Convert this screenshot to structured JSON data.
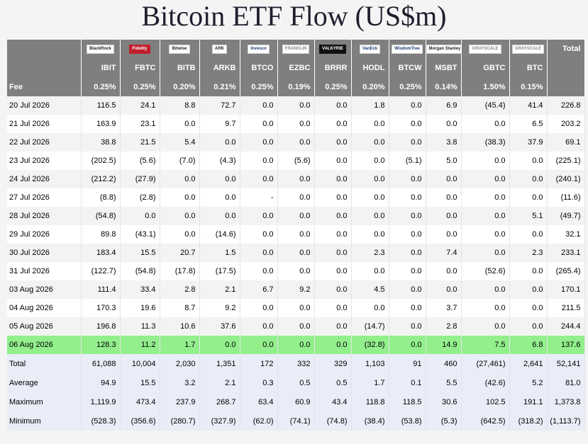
{
  "title": "Bitcoin ETF Flow (US$m)",
  "logos": [
    {
      "text": "BlackRock",
      "style": ""
    },
    {
      "text": "Fidelity",
      "style": "red"
    },
    {
      "text": "Bitwise",
      "style": ""
    },
    {
      "text": "ARK",
      "style": ""
    },
    {
      "text": "Invesco",
      "style": "navy"
    },
    {
      "text": "FRANKLIN",
      "style": "grey"
    },
    {
      "text": "VALKYRIE",
      "style": "dark"
    },
    {
      "text": "VanEck",
      "style": "navy"
    },
    {
      "text": "WisdomTree",
      "style": "navy"
    },
    {
      "text": "Morgan Stanley",
      "style": ""
    },
    {
      "text": "GRAYSCALE",
      "style": "grey"
    },
    {
      "text": "GRAYSCALE",
      "style": "grey"
    }
  ],
  "total_header": "Total",
  "tickers": [
    "IBIT",
    "FBTC",
    "BITB",
    "ARKB",
    "BTCO",
    "EZBC",
    "BRRR",
    "HODL",
    "BTCW",
    "MSBT",
    "GBTC",
    "BTC"
  ],
  "fee_label": "Fee",
  "fees": [
    "0.25%",
    "0.25%",
    "0.20%",
    "0.21%",
    "0.25%",
    "0.19%",
    "0.25%",
    "0.20%",
    "0.25%",
    "0.14%",
    "1.50%",
    "0.15%"
  ],
  "rows": [
    {
      "date": "20 Jul 2026",
      "values": [
        "116.5",
        "24.1",
        "8.8",
        "72.7",
        "0.0",
        "0.0",
        "0.0",
        "1.8",
        "0.0",
        "6.9",
        "(45.4)",
        "41.4"
      ],
      "total": "226.8"
    },
    {
      "date": "21 Jul 2026",
      "values": [
        "163.9",
        "23.1",
        "0.0",
        "9.7",
        "0.0",
        "0.0",
        "0.0",
        "0.0",
        "0.0",
        "0.0",
        "0.0",
        "6.5"
      ],
      "total": "203.2"
    },
    {
      "date": "22 Jul 2026",
      "values": [
        "38.8",
        "21.5",
        "5.4",
        "0.0",
        "0.0",
        "0.0",
        "0.0",
        "0.0",
        "0.0",
        "3.8",
        "(38.3)",
        "37.9"
      ],
      "total": "69.1"
    },
    {
      "date": "23 Jul 2026",
      "values": [
        "(202.5)",
        "(5.6)",
        "(7.0)",
        "(4.3)",
        "0.0",
        "(5.6)",
        "0.0",
        "0.0",
        "(5.1)",
        "5.0",
        "0.0",
        "0.0"
      ],
      "total": "(225.1)"
    },
    {
      "date": "24 Jul 2026",
      "values": [
        "(212.2)",
        "(27.9)",
        "0.0",
        "0.0",
        "0.0",
        "0.0",
        "0.0",
        "0.0",
        "0.0",
        "0.0",
        "0.0",
        "0.0"
      ],
      "total": "(240.1)"
    },
    {
      "date": "27 Jul 2026",
      "values": [
        "(8.8)",
        "(2.8)",
        "0.0",
        "0.0",
        "-",
        "0.0",
        "0.0",
        "0.0",
        "0.0",
        "0.0",
        "0.0",
        "0.0"
      ],
      "total": "(11.6)"
    },
    {
      "date": "28 Jul 2026",
      "values": [
        "(54.8)",
        "0.0",
        "0.0",
        "0.0",
        "0.0",
        "0.0",
        "0.0",
        "0.0",
        "0.0",
        "0.0",
        "0.0",
        "5.1"
      ],
      "total": "(49.7)"
    },
    {
      "date": "29 Jul 2026",
      "values": [
        "89.8",
        "(43.1)",
        "0.0",
        "(14.6)",
        "0.0",
        "0.0",
        "0.0",
        "0.0",
        "0.0",
        "0.0",
        "0.0",
        "0.0"
      ],
      "total": "32.1"
    },
    {
      "date": "30 Jul 2026",
      "values": [
        "183.4",
        "15.5",
        "20.7",
        "1.5",
        "0.0",
        "0.0",
        "0.0",
        "2.3",
        "0.0",
        "7.4",
        "0.0",
        "2.3"
      ],
      "total": "233.1"
    },
    {
      "date": "31 Jul 2026",
      "values": [
        "(122.7)",
        "(54.8)",
        "(17.8)",
        "(17.5)",
        "0.0",
        "0.0",
        "0.0",
        "0.0",
        "0.0",
        "0.0",
        "(52.6)",
        "0.0"
      ],
      "total": "(265.4)"
    },
    {
      "date": "03 Aug 2026",
      "values": [
        "111.4",
        "33.4",
        "2.8",
        "2.1",
        "6.7",
        "9.2",
        "0.0",
        "4.5",
        "0.0",
        "0.0",
        "0.0",
        "0.0"
      ],
      "total": "170.1"
    },
    {
      "date": "04 Aug 2026",
      "values": [
        "170.3",
        "19.6",
        "8.7",
        "9.2",
        "0.0",
        "0.0",
        "0.0",
        "0.0",
        "0.0",
        "3.7",
        "0.0",
        "0.0"
      ],
      "total": "211.5"
    },
    {
      "date": "05 Aug 2026",
      "values": [
        "196.8",
        "11.3",
        "10.6",
        "37.6",
        "0.0",
        "0.0",
        "0.0",
        "(14.7)",
        "0.0",
        "2.8",
        "0.0",
        "0.0"
      ],
      "total": "244.4"
    },
    {
      "date": "06 Aug 2026",
      "values": [
        "128.3",
        "11.2",
        "1.7",
        "0.0",
        "0.0",
        "0.0",
        "0.0",
        "(32.8)",
        "0.0",
        "14.9",
        "7.5",
        "6.8"
      ],
      "total": "137.6",
      "highlight": true
    }
  ],
  "summary": [
    {
      "label": "Total",
      "values": [
        "61,088",
        "10,004",
        "2,030",
        "1,351",
        "172",
        "332",
        "329",
        "1,103",
        "91",
        "460",
        "(27,461)",
        "2,641"
      ],
      "total": "52,141"
    },
    {
      "label": "Average",
      "values": [
        "94.9",
        "15.5",
        "3.2",
        "2.1",
        "0.3",
        "0.5",
        "0.5",
        "1.7",
        "0.1",
        "5.5",
        "(42.6)",
        "5.2"
      ],
      "total": "81.0"
    },
    {
      "label": "Maximum",
      "values": [
        "1,119.9",
        "473.4",
        "237.9",
        "268.7",
        "63.4",
        "60.9",
        "43.4",
        "118.8",
        "118.5",
        "30.6",
        "102.5",
        "191.1"
      ],
      "total": "1,373.8"
    },
    {
      "label": "Minimum",
      "values": [
        "(528.3)",
        "(356.6)",
        "(280.7)",
        "(327.9)",
        "(62.0)",
        "(74.1)",
        "(74.8)",
        "(38.4)",
        "(53.8)",
        "(5.3)",
        "(642.5)",
        "(318.2)"
      ],
      "total": "(1,113.7)"
    }
  ]
}
